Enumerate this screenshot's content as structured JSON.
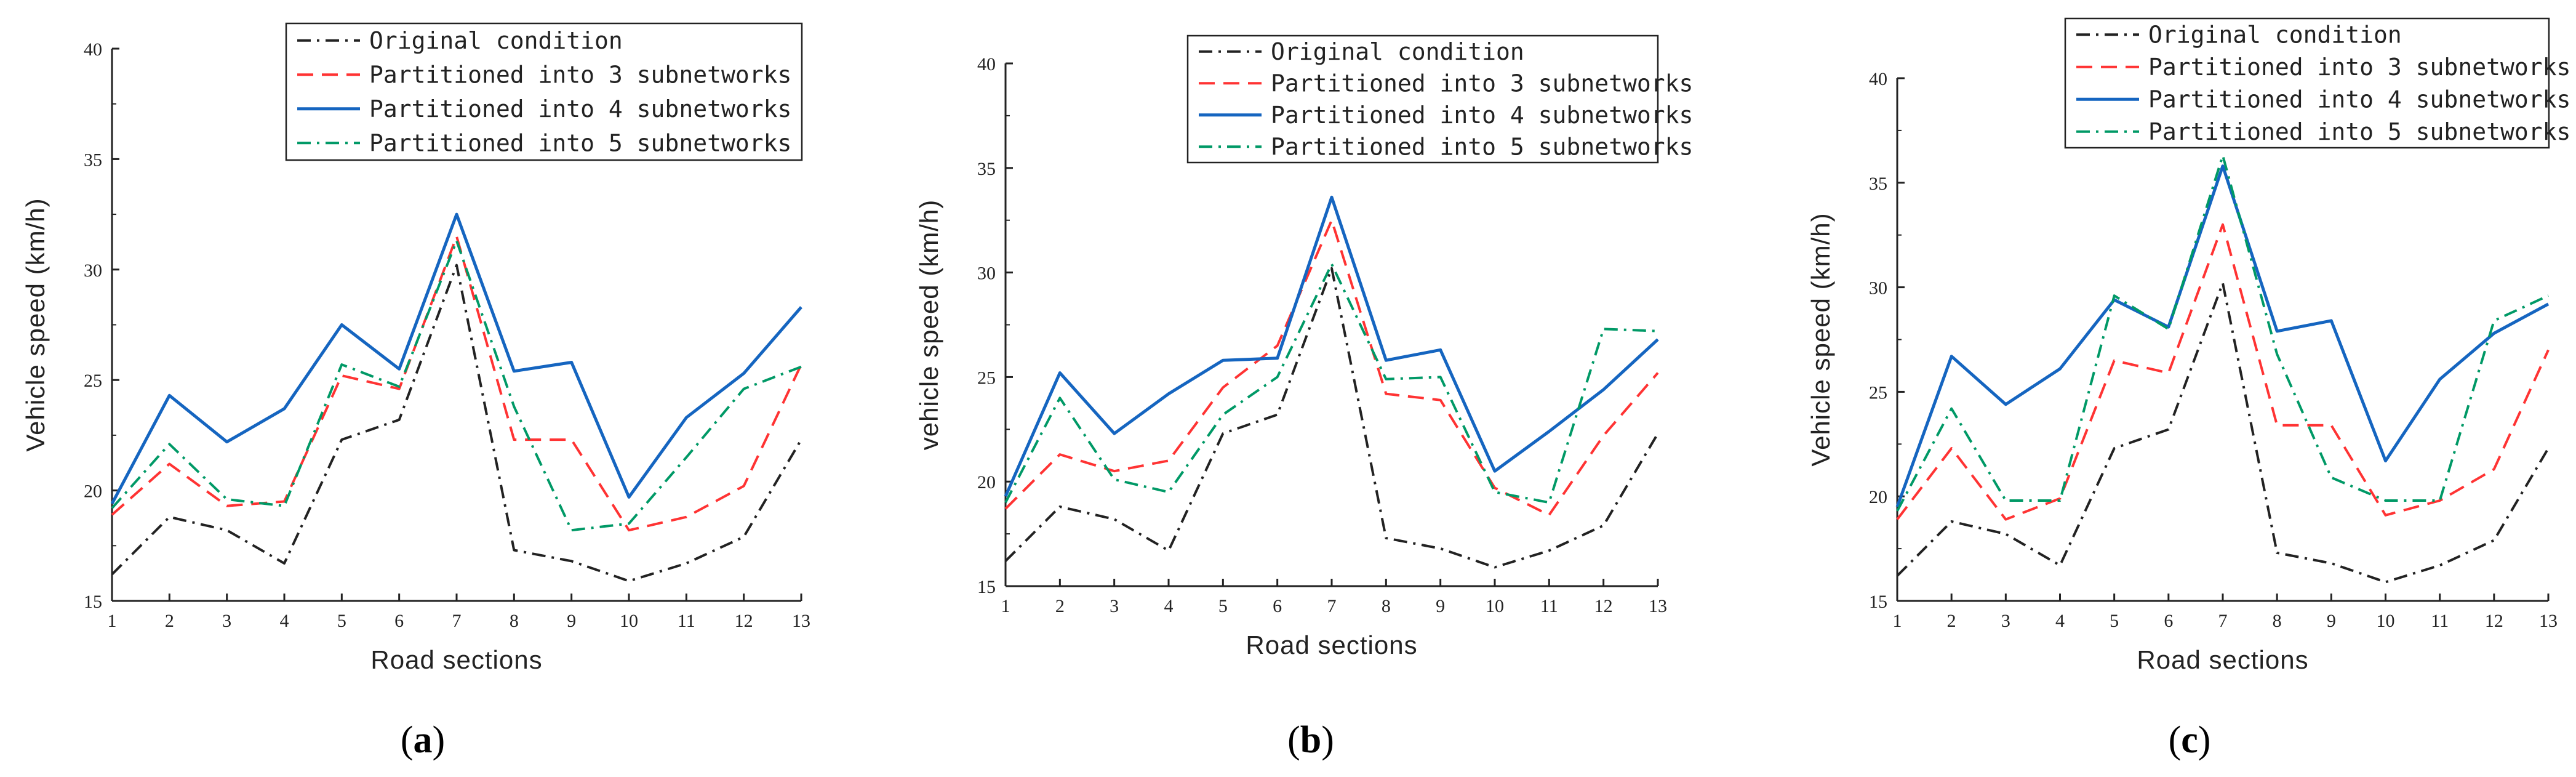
{
  "chart_data": [
    {
      "type": "line",
      "panel": "(a)",
      "panel_letter": "a",
      "ylabel": "Vehicle speed (km/h)",
      "xlabel": "Road sections",
      "ylim": [
        15,
        40
      ],
      "yticks": [
        15,
        20,
        25,
        30,
        35,
        40
      ],
      "categories": [
        "1",
        "2",
        "3",
        "4",
        "5",
        "6",
        "7",
        "8",
        "9",
        "10",
        "11",
        "12",
        "13"
      ],
      "series": [
        {
          "name": "Original condition",
          "style": "dashdot",
          "color": "#222222",
          "values": [
            16.2,
            18.8,
            18.2,
            16.7,
            22.3,
            23.2,
            30.2,
            17.3,
            16.8,
            15.9,
            16.7,
            17.9,
            22.3
          ]
        },
        {
          "name": "Partitioned into 3 subnetworks",
          "style": "dashed",
          "color": "#ff3333",
          "values": [
            18.9,
            21.2,
            19.3,
            19.5,
            25.2,
            24.6,
            31.5,
            22.3,
            22.3,
            18.2,
            18.8,
            20.2,
            25.7
          ]
        },
        {
          "name": "Partitioned into 4 subnetworks",
          "style": "solid",
          "color": "#1565c0",
          "values": [
            19.4,
            24.3,
            22.2,
            23.7,
            27.5,
            25.5,
            32.5,
            25.4,
            25.8,
            19.7,
            23.3,
            25.3,
            28.3
          ]
        },
        {
          "name": "Partitioned into 5 subnetworks",
          "style": "dashdot",
          "color": "#009966",
          "values": [
            19.2,
            22.1,
            19.6,
            19.3,
            25.7,
            24.7,
            31.3,
            23.8,
            18.2,
            18.5,
            21.5,
            24.6,
            25.6
          ]
        }
      ]
    },
    {
      "type": "line",
      "panel": "(b)",
      "panel_letter": "b",
      "ylabel": "vehicle speed (km/h)",
      "xlabel": "Road sections",
      "ylim": [
        15,
        40
      ],
      "yticks": [
        15,
        20,
        25,
        30,
        35,
        40
      ],
      "categories": [
        "1",
        "2",
        "3",
        "4",
        "5",
        "6",
        "7",
        "8",
        "9",
        "10",
        "11",
        "12",
        "13"
      ],
      "series": [
        {
          "name": "Original condition",
          "style": "dashdot",
          "color": "#222222",
          "values": [
            16.2,
            18.8,
            18.2,
            16.7,
            22.3,
            23.2,
            30.2,
            17.3,
            16.8,
            15.9,
            16.7,
            17.9,
            22.3
          ]
        },
        {
          "name": "Partitioned into 3 subnetworks",
          "style": "dashed",
          "color": "#ff3333",
          "values": [
            18.7,
            21.3,
            20.5,
            21.0,
            24.5,
            26.5,
            32.5,
            24.2,
            23.9,
            19.7,
            18.4,
            22.2,
            25.2
          ]
        },
        {
          "name": "Partitioned into 4 subnetworks",
          "style": "solid",
          "color": "#1565c0",
          "values": [
            19.3,
            25.2,
            22.3,
            24.2,
            25.8,
            25.9,
            33.6,
            25.8,
            26.3,
            20.5,
            22.4,
            24.4,
            26.8
          ]
        },
        {
          "name": "Partitioned into 5 subnetworks",
          "style": "dashdot",
          "color": "#009966",
          "values": [
            19.0,
            24.0,
            20.1,
            19.5,
            23.2,
            25.0,
            30.4,
            24.9,
            25.0,
            19.5,
            19.0,
            27.3,
            27.2
          ]
        }
      ]
    },
    {
      "type": "line",
      "panel": "(c)",
      "panel_letter": "c",
      "ylabel": "Vehicle speed (km/h)",
      "xlabel": "Road sections",
      "ylim": [
        15,
        40
      ],
      "yticks": [
        15,
        20,
        25,
        30,
        35,
        40
      ],
      "categories": [
        "1",
        "2",
        "3",
        "4",
        "5",
        "6",
        "7",
        "8",
        "9",
        "10",
        "11",
        "12",
        "13"
      ],
      "series": [
        {
          "name": "Original condition",
          "style": "dashdot",
          "color": "#222222",
          "values": [
            16.2,
            18.8,
            18.2,
            16.7,
            22.3,
            23.2,
            30.2,
            17.3,
            16.8,
            15.9,
            16.7,
            17.9,
            22.3
          ]
        },
        {
          "name": "Partitioned into 3 subnetworks",
          "style": "dashed",
          "color": "#ff3333",
          "values": [
            18.9,
            22.3,
            18.9,
            19.9,
            26.5,
            25.9,
            33.0,
            23.4,
            23.4,
            19.1,
            19.8,
            21.3,
            27.0
          ]
        },
        {
          "name": "Partitioned into 4 subnetworks",
          "style": "solid",
          "color": "#1565c0",
          "values": [
            19.5,
            26.7,
            24.4,
            26.1,
            29.4,
            28.1,
            35.8,
            27.9,
            28.4,
            21.7,
            25.6,
            27.8,
            29.2
          ]
        },
        {
          "name": "Partitioned into 5 subnetworks",
          "style": "dashdot",
          "color": "#009966",
          "values": [
            19.3,
            24.2,
            19.8,
            19.8,
            29.6,
            28.0,
            36.3,
            26.8,
            20.9,
            19.8,
            19.8,
            28.4,
            29.6
          ]
        }
      ]
    }
  ]
}
